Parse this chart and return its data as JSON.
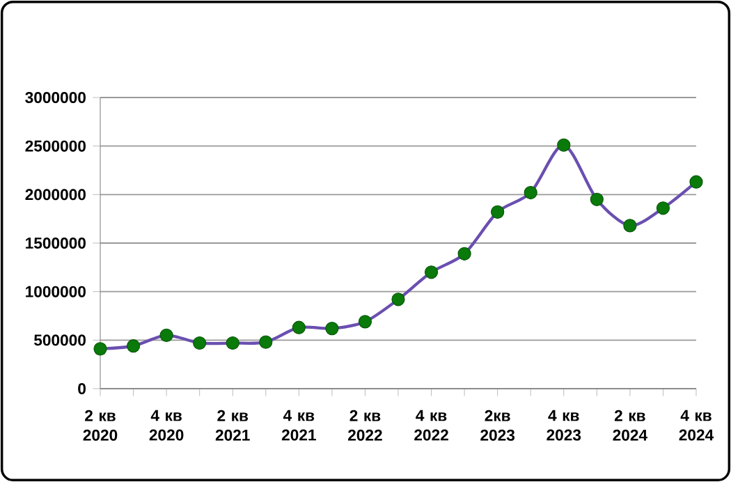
{
  "chart_data": {
    "type": "line",
    "categories": [
      "2 кв 2020",
      null,
      "4 кв 2020",
      null,
      "2 кв 2021",
      null,
      "4 кв 2021",
      null,
      "2 кв 2022",
      null,
      "4 кв 2022",
      null,
      "2кв 2023",
      null,
      "4 кв 2023",
      null,
      "2 кв 2024",
      null,
      "4 кв 2024"
    ],
    "series": [
      {
        "color": "#6a4fb0",
        "values": [
          410000,
          440000,
          550000,
          470000,
          470000,
          480000,
          630000,
          620000,
          690000,
          920000,
          1200000,
          1390000,
          1820000,
          2020000,
          2510000,
          1950000,
          1680000,
          1860000,
          2130000
        ]
      }
    ],
    "ylim": [
      0,
      3000000
    ],
    "yticks": [
      0,
      500000,
      1000000,
      1500000,
      2000000,
      2500000,
      3000000
    ],
    "grid": "y",
    "marker": "circle",
    "line_style": "solid"
  }
}
